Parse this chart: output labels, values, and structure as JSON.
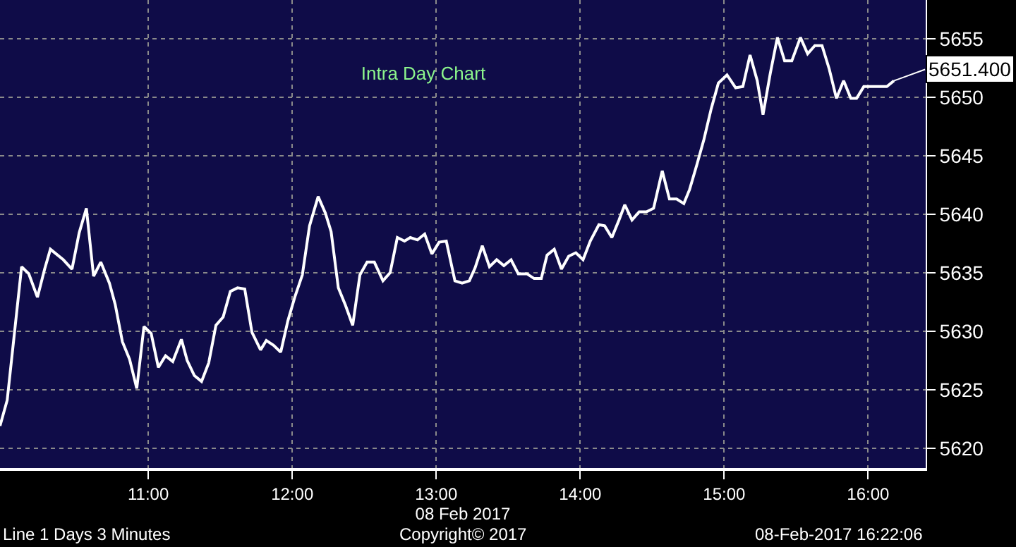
{
  "chart_data": {
    "type": "line",
    "title": "Intra Day Chart",
    "xlabel": "08 Feb 2017",
    "x": [
      9.97,
      10.02,
      10.12,
      10.17,
      10.23,
      10.28,
      10.32,
      10.41,
      10.47,
      10.52,
      10.57,
      10.62,
      10.67,
      10.73,
      10.77,
      10.82,
      10.87,
      10.92,
      10.97,
      11.02,
      11.07,
      11.12,
      11.17,
      11.23,
      11.27,
      11.32,
      11.37,
      11.42,
      11.47,
      11.52,
      11.57,
      11.62,
      11.67,
      11.72,
      11.78,
      11.82,
      11.87,
      11.92,
      11.97,
      12.02,
      12.07,
      12.12,
      12.18,
      12.23,
      12.27,
      12.32,
      12.37,
      12.42,
      12.47,
      12.52,
      12.57,
      12.63,
      12.68,
      12.73,
      12.78,
      12.82,
      12.87,
      12.92,
      12.97,
      13.02,
      13.07,
      13.13,
      13.18,
      13.23,
      13.27,
      13.32,
      13.37,
      13.42,
      13.47,
      13.52,
      13.57,
      13.63,
      13.68,
      13.73,
      13.77,
      13.82,
      13.87,
      13.92,
      13.97,
      14.02,
      14.07,
      14.13,
      14.17,
      14.22,
      14.27,
      14.31,
      14.36,
      14.41,
      14.46,
      14.51,
      14.57,
      14.62,
      14.67,
      14.72,
      14.76,
      14.81,
      14.86,
      14.91,
      14.96,
      15.02,
      15.08,
      15.13,
      15.18,
      15.23,
      15.27,
      15.32,
      15.37,
      15.42,
      15.47,
      15.53,
      15.58,
      15.63,
      15.68,
      15.73,
      15.78,
      15.83,
      15.88,
      15.92,
      15.97,
      16.02,
      16.07,
      16.13,
      16.18
    ],
    "series": [
      {
        "color": "#ffffff",
        "values": [
          5621.9,
          5624.1,
          5635.5,
          5634.9,
          5632.9,
          5635.3,
          5637.0,
          5636.1,
          5635.3,
          5638.4,
          5640.5,
          5634.7,
          5635.9,
          5634.1,
          5632.3,
          5629.1,
          5627.6,
          5625.1,
          5630.4,
          5629.8,
          5626.9,
          5627.9,
          5627.4,
          5629.3,
          5627.5,
          5626.2,
          5625.7,
          5627.3,
          5630.5,
          5631.2,
          5633.4,
          5633.7,
          5633.6,
          5629.9,
          5628.4,
          5629.2,
          5628.8,
          5628.2,
          5630.9,
          5633.0,
          5634.8,
          5639.0,
          5641.5,
          5640.1,
          5638.5,
          5633.7,
          5632.2,
          5630.5,
          5634.8,
          5635.9,
          5635.9,
          5634.3,
          5635.0,
          5638.0,
          5637.7,
          5638.0,
          5637.8,
          5638.3,
          5636.6,
          5637.6,
          5637.7,
          5634.3,
          5634.1,
          5634.3,
          5635.4,
          5637.3,
          5635.5,
          5636.1,
          5635.6,
          5636.1,
          5634.9,
          5634.9,
          5634.5,
          5634.5,
          5636.5,
          5637.0,
          5635.3,
          5636.4,
          5636.7,
          5636.1,
          5637.7,
          5639.1,
          5639.0,
          5638.0,
          5639.5,
          5640.8,
          5639.5,
          5640.2,
          5640.2,
          5640.5,
          5643.7,
          5641.3,
          5641.3,
          5640.9,
          5642.1,
          5644.2,
          5646.4,
          5649.0,
          5651.2,
          5651.9,
          5650.8,
          5650.9,
          5653.6,
          5651.4,
          5648.5,
          5652.0,
          5655.1,
          5653.1,
          5653.1,
          5655.1,
          5653.7,
          5654.4,
          5654.4,
          5652.4,
          5649.9,
          5651.4,
          5649.9,
          5649.9,
          5650.9,
          5650.9,
          5650.9,
          5650.9,
          5651.4
        ]
      }
    ],
    "xlim": [
      9.97,
      16.4
    ],
    "xticks": [
      {
        "value": 11,
        "label": "11:00"
      },
      {
        "value": 12,
        "label": "12:00"
      },
      {
        "value": 13,
        "label": "13:00"
      },
      {
        "value": 14,
        "label": "14:00"
      },
      {
        "value": 15,
        "label": "15:00"
      },
      {
        "value": 16,
        "label": "16:00"
      }
    ],
    "ylim": [
      5618.3,
      5658.3
    ],
    "yticks": [
      5620,
      5625,
      5630,
      5635,
      5640,
      5645,
      5650,
      5655
    ],
    "grid": true,
    "marker": "none",
    "line_style": "solid",
    "annotations": [
      {
        "text": "5651.400",
        "x": 16.18,
        "y": 5651.4
      },
      "Line 1 Days 3 Minutes",
      "Copyright© 2017",
      "08-Feb-2017 16:22:06"
    ]
  }
}
